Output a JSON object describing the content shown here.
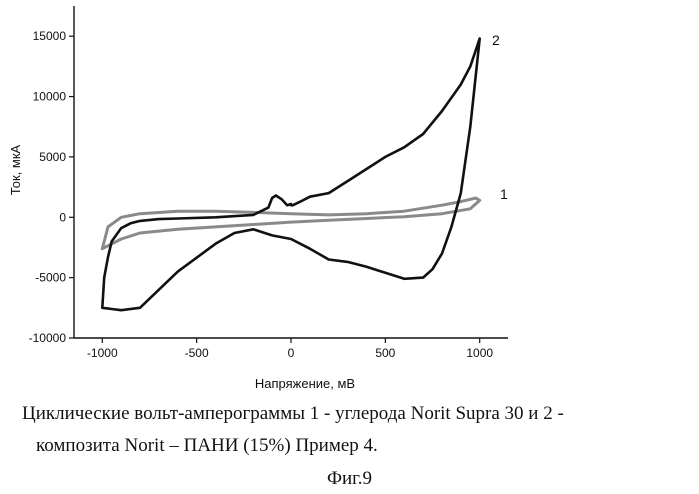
{
  "chart_data": {
    "type": "line",
    "xlabel": "Напряжение, мВ",
    "ylabel": "Ток, мкА",
    "xlim": [
      -1150,
      1150
    ],
    "ylim": [
      -10000,
      17500
    ],
    "x_ticks": [
      -1000,
      -500,
      0,
      500,
      1000
    ],
    "y_ticks": [
      -10000,
      -5000,
      0,
      5000,
      10000,
      15000
    ],
    "grid": false,
    "series": [
      {
        "name": "1",
        "color": "#8a8a8a",
        "x": [
          -1000,
          -900,
          -800,
          -600,
          -400,
          -200,
          0,
          200,
          400,
          600,
          800,
          950,
          1000,
          980,
          900,
          800,
          600,
          400,
          200,
          0,
          -200,
          -400,
          -600,
          -800,
          -900,
          -970,
          -1000
        ],
        "y": [
          -2600,
          -1800,
          -1300,
          -1000,
          -800,
          -600,
          -400,
          -250,
          -100,
          50,
          300,
          700,
          1400,
          1600,
          1300,
          1000,
          500,
          300,
          200,
          300,
          400,
          500,
          500,
          300,
          0,
          -800,
          -2600
        ]
      },
      {
        "name": "2",
        "color": "#111111",
        "x": [
          1000,
          950,
          900,
          850,
          800,
          750,
          700,
          600,
          400,
          300,
          200,
          100,
          0,
          -100,
          -200,
          -300,
          -400,
          -600,
          -700,
          -800,
          -900,
          -950,
          -1000,
          -990,
          -970,
          -950,
          -900,
          -850,
          -800,
          -700,
          -600,
          -400,
          -200,
          -120,
          -100,
          -80,
          -50,
          -20,
          0,
          0,
          10,
          50,
          100,
          200,
          300,
          400,
          500,
          600,
          700,
          800,
          900,
          950,
          1000
        ],
        "y": [
          14800,
          7500,
          2000,
          -800,
          -3000,
          -4300,
          -5000,
          -5100,
          -4100,
          -3700,
          -3500,
          -2600,
          -1800,
          -1500,
          -1000,
          -1300,
          -2200,
          -4500,
          -6000,
          -7500,
          -7700,
          -7600,
          -7500,
          -5000,
          -3300,
          -2000,
          -900,
          -500,
          -300,
          -150,
          -100,
          0,
          200,
          800,
          1600,
          1800,
          1500,
          1000,
          1100,
          1000,
          1000,
          1300,
          1700,
          2000,
          3000,
          4000,
          5000,
          5800,
          6900,
          8800,
          11000,
          12500,
          14800
        ]
      }
    ]
  },
  "caption": {
    "line1": "Циклические вольт-амперограммы 1 -  углерода Norit Supra 30  и 2 -",
    "line2": "композита Norit – ПАНИ (15%)  Пример 4.",
    "figure_label": "Фиг.9"
  }
}
